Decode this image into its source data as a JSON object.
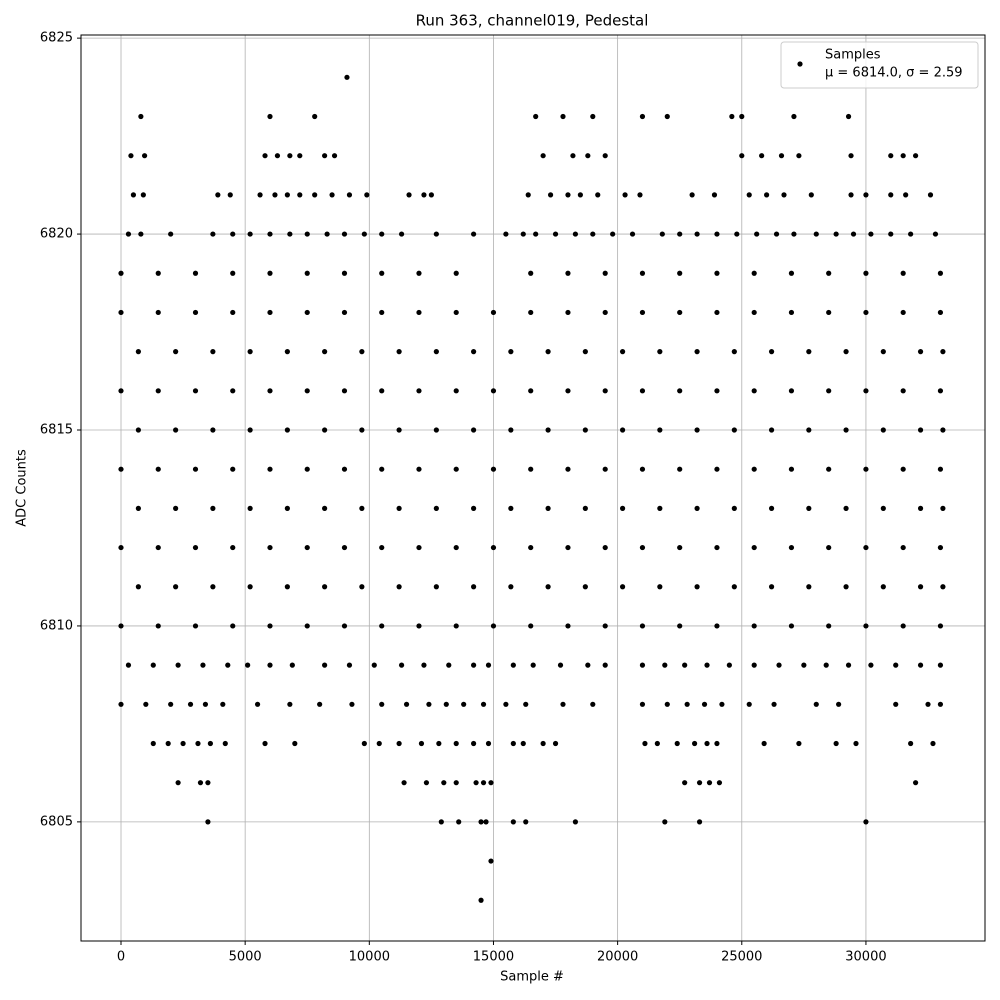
{
  "chart_data": {
    "type": "scatter",
    "title": "Run 363, channel019, Pedestal",
    "x_label": "Sample #",
    "y_label": "ADC Counts",
    "xlim": [
      -1611,
      34795
    ],
    "ylim": [
      6801.96,
      6825.08
    ],
    "xticks": [
      0,
      5000,
      10000,
      15000,
      20000,
      25000,
      30000
    ],
    "yticks": [
      6805,
      6810,
      6815,
      6820,
      6825
    ],
    "grid": true,
    "legend_position": "upper right",
    "legend_stats": "μ = 6814.0, σ = 2.59",
    "series": [
      {
        "name": "Samples",
        "color": "#000000",
        "x": [
          9100,
          800,
          6000,
          7800,
          16700,
          17800,
          19000,
          21000,
          22000,
          24600,
          25000,
          27100,
          29300,
          400,
          950,
          5800,
          6300,
          6800,
          7200,
          8200,
          8600,
          17000,
          18200,
          18800,
          19500,
          25000,
          25800,
          26600,
          27300,
          29400,
          31000,
          31500,
          32000,
          500,
          900,
          3900,
          4400,
          5600,
          6200,
          6700,
          7200,
          7800,
          8500,
          9200,
          9900,
          11600,
          12200,
          12500,
          16400,
          17300,
          18000,
          18500,
          19200,
          20300,
          20900,
          23000,
          23900,
          25300,
          26000,
          26700,
          27800,
          29400,
          30000,
          31000,
          31600,
          32600,
          300,
          800,
          2000,
          3700,
          4500,
          5200,
          6000,
          6800,
          7500,
          8300,
          9000,
          9800,
          10500,
          11300,
          12700,
          14200,
          15500,
          16200,
          16700,
          17500,
          18300,
          19000,
          19800,
          20600,
          21800,
          22500,
          23200,
          24000,
          24800,
          25600,
          26400,
          27100,
          28000,
          28800,
          29500,
          30200,
          31000,
          31800,
          32800,
          0,
          1500,
          3000,
          4500,
          6000,
          7500,
          9000,
          10500,
          12000,
          13500,
          16500,
          18000,
          19500,
          21000,
          22500,
          24000,
          25500,
          27000,
          28500,
          30000,
          31500,
          33000,
          0,
          1500,
          3000,
          4500,
          6000,
          7500,
          9000,
          10500,
          12000,
          13500,
          15000,
          16500,
          18000,
          19500,
          21000,
          22500,
          24000,
          25500,
          27000,
          28500,
          30000,
          31500,
          33000,
          700,
          2200,
          3700,
          5200,
          6700,
          8200,
          9700,
          11200,
          12700,
          14200,
          15700,
          17200,
          18700,
          20200,
          21700,
          23200,
          24700,
          26200,
          27700,
          29200,
          30700,
          32200,
          33100,
          0,
          1500,
          3000,
          4500,
          6000,
          7500,
          9000,
          10500,
          12000,
          13500,
          15000,
          16500,
          18000,
          19500,
          21000,
          22500,
          24000,
          25500,
          27000,
          28500,
          30000,
          31500,
          33000,
          700,
          2200,
          3700,
          5200,
          6700,
          8200,
          9700,
          11200,
          12700,
          14200,
          15700,
          17200,
          18700,
          20200,
          21700,
          23200,
          24700,
          26200,
          27700,
          29200,
          30700,
          32200,
          33100,
          0,
          1500,
          3000,
          4500,
          6000,
          7500,
          9000,
          10500,
          12000,
          13500,
          15000,
          16500,
          18000,
          19500,
          21000,
          22500,
          24000,
          25500,
          27000,
          28500,
          30000,
          31500,
          33000,
          700,
          2200,
          3700,
          5200,
          6700,
          8200,
          9700,
          11200,
          12700,
          14200,
          15700,
          17200,
          18700,
          20200,
          21700,
          23200,
          24700,
          26200,
          27700,
          29200,
          30700,
          32200,
          33100,
          0,
          1500,
          3000,
          4500,
          6000,
          7500,
          9000,
          10500,
          12000,
          13500,
          15000,
          16500,
          18000,
          19500,
          21000,
          22500,
          24000,
          25500,
          27000,
          28500,
          30000,
          31500,
          33000,
          700,
          2200,
          3700,
          5200,
          6700,
          8200,
          9700,
          11200,
          12700,
          14200,
          15700,
          17200,
          18700,
          20200,
          21700,
          23200,
          24700,
          26200,
          27700,
          29200,
          30700,
          32200,
          33100,
          0,
          1500,
          3000,
          4500,
          6000,
          7500,
          9000,
          10500,
          12000,
          13500,
          15000,
          16500,
          18000,
          19500,
          21000,
          22500,
          24000,
          25500,
          27000,
          28500,
          30000,
          31500,
          33000,
          300,
          1300,
          2300,
          3300,
          4300,
          5100,
          6000,
          6900,
          8200,
          9200,
          10200,
          11300,
          12200,
          13200,
          14200,
          14800,
          15800,
          16600,
          17700,
          18800,
          19500,
          21000,
          21900,
          22700,
          23600,
          24500,
          25500,
          26500,
          27500,
          28400,
          29300,
          30200,
          31200,
          32200,
          33000,
          0,
          1000,
          2000,
          2800,
          3400,
          4100,
          5500,
          6800,
          8000,
          9300,
          10500,
          11500,
          12400,
          13100,
          13800,
          14600,
          15500,
          16300,
          17800,
          19000,
          21000,
          22000,
          22800,
          23500,
          24200,
          25300,
          26300,
          28000,
          28900,
          31200,
          32500,
          33000,
          1300,
          1900,
          2500,
          3100,
          3600,
          4200,
          5800,
          7000,
          9800,
          10400,
          11200,
          12100,
          12800,
          13500,
          14200,
          14800,
          15800,
          16200,
          17000,
          17500,
          21100,
          21600,
          22400,
          23100,
          23600,
          24000,
          25900,
          27300,
          28800,
          29600,
          31800,
          32700,
          2300,
          3200,
          3500,
          11400,
          12300,
          13000,
          13500,
          14300,
          14600,
          14900,
          22700,
          23300,
          23700,
          24100,
          32000,
          3500,
          12900,
          13600,
          14500,
          14700,
          15800,
          16300,
          18300,
          21900,
          23300,
          30000,
          14900,
          14500
        ],
        "y": [
          6824,
          6823,
          6823,
          6823,
          6823,
          6823,
          6823,
          6823,
          6823,
          6823,
          6823,
          6823,
          6823,
          6822,
          6822,
          6822,
          6822,
          6822,
          6822,
          6822,
          6822,
          6822,
          6822,
          6822,
          6822,
          6822,
          6822,
          6822,
          6822,
          6822,
          6822,
          6822,
          6822,
          6821,
          6821,
          6821,
          6821,
          6821,
          6821,
          6821,
          6821,
          6821,
          6821,
          6821,
          6821,
          6821,
          6821,
          6821,
          6821,
          6821,
          6821,
          6821,
          6821,
          6821,
          6821,
          6821,
          6821,
          6821,
          6821,
          6821,
          6821,
          6821,
          6821,
          6821,
          6821,
          6821,
          6820,
          6820,
          6820,
          6820,
          6820,
          6820,
          6820,
          6820,
          6820,
          6820,
          6820,
          6820,
          6820,
          6820,
          6820,
          6820,
          6820,
          6820,
          6820,
          6820,
          6820,
          6820,
          6820,
          6820,
          6820,
          6820,
          6820,
          6820,
          6820,
          6820,
          6820,
          6820,
          6820,
          6820,
          6820,
          6820,
          6820,
          6820,
          6820,
          6819,
          6819,
          6819,
          6819,
          6819,
          6819,
          6819,
          6819,
          6819,
          6819,
          6819,
          6819,
          6819,
          6819,
          6819,
          6819,
          6819,
          6819,
          6819,
          6819,
          6819,
          6819,
          6818,
          6818,
          6818,
          6818,
          6818,
          6818,
          6818,
          6818,
          6818,
          6818,
          6818,
          6818,
          6818,
          6818,
          6818,
          6818,
          6818,
          6818,
          6818,
          6818,
          6818,
          6818,
          6818,
          6817,
          6817,
          6817,
          6817,
          6817,
          6817,
          6817,
          6817,
          6817,
          6817,
          6817,
          6817,
          6817,
          6817,
          6817,
          6817,
          6817,
          6817,
          6817,
          6817,
          6817,
          6817,
          6817,
          6816,
          6816,
          6816,
          6816,
          6816,
          6816,
          6816,
          6816,
          6816,
          6816,
          6816,
          6816,
          6816,
          6816,
          6816,
          6816,
          6816,
          6816,
          6816,
          6816,
          6816,
          6816,
          6816,
          6815,
          6815,
          6815,
          6815,
          6815,
          6815,
          6815,
          6815,
          6815,
          6815,
          6815,
          6815,
          6815,
          6815,
          6815,
          6815,
          6815,
          6815,
          6815,
          6815,
          6815,
          6815,
          6815,
          6814,
          6814,
          6814,
          6814,
          6814,
          6814,
          6814,
          6814,
          6814,
          6814,
          6814,
          6814,
          6814,
          6814,
          6814,
          6814,
          6814,
          6814,
          6814,
          6814,
          6814,
          6814,
          6814,
          6813,
          6813,
          6813,
          6813,
          6813,
          6813,
          6813,
          6813,
          6813,
          6813,
          6813,
          6813,
          6813,
          6813,
          6813,
          6813,
          6813,
          6813,
          6813,
          6813,
          6813,
          6813,
          6813,
          6812,
          6812,
          6812,
          6812,
          6812,
          6812,
          6812,
          6812,
          6812,
          6812,
          6812,
          6812,
          6812,
          6812,
          6812,
          6812,
          6812,
          6812,
          6812,
          6812,
          6812,
          6812,
          6812,
          6811,
          6811,
          6811,
          6811,
          6811,
          6811,
          6811,
          6811,
          6811,
          6811,
          6811,
          6811,
          6811,
          6811,
          6811,
          6811,
          6811,
          6811,
          6811,
          6811,
          6811,
          6811,
          6811,
          6810,
          6810,
          6810,
          6810,
          6810,
          6810,
          6810,
          6810,
          6810,
          6810,
          6810,
          6810,
          6810,
          6810,
          6810,
          6810,
          6810,
          6810,
          6810,
          6810,
          6810,
          6810,
          6810,
          6809,
          6809,
          6809,
          6809,
          6809,
          6809,
          6809,
          6809,
          6809,
          6809,
          6809,
          6809,
          6809,
          6809,
          6809,
          6809,
          6809,
          6809,
          6809,
          6809,
          6809,
          6809,
          6809,
          6809,
          6809,
          6809,
          6809,
          6809,
          6809,
          6809,
          6809,
          6809,
          6809,
          6809,
          6809,
          6808,
          6808,
          6808,
          6808,
          6808,
          6808,
          6808,
          6808,
          6808,
          6808,
          6808,
          6808,
          6808,
          6808,
          6808,
          6808,
          6808,
          6808,
          6808,
          6808,
          6808,
          6808,
          6808,
          6808,
          6808,
          6808,
          6808,
          6808,
          6808,
          6808,
          6808,
          6808,
          6807,
          6807,
          6807,
          6807,
          6807,
          6807,
          6807,
          6807,
          6807,
          6807,
          6807,
          6807,
          6807,
          6807,
          6807,
          6807,
          6807,
          6807,
          6807,
          6807,
          6807,
          6807,
          6807,
          6807,
          6807,
          6807,
          6807,
          6807,
          6807,
          6807,
          6807,
          6807,
          6806,
          6806,
          6806,
          6806,
          6806,
          6806,
          6806,
          6806,
          6806,
          6806,
          6806,
          6806,
          6806,
          6806,
          6806,
          6805,
          6805,
          6805,
          6805,
          6805,
          6805,
          6805,
          6805,
          6805,
          6805,
          6805,
          6804,
          6803
        ]
      }
    ]
  }
}
